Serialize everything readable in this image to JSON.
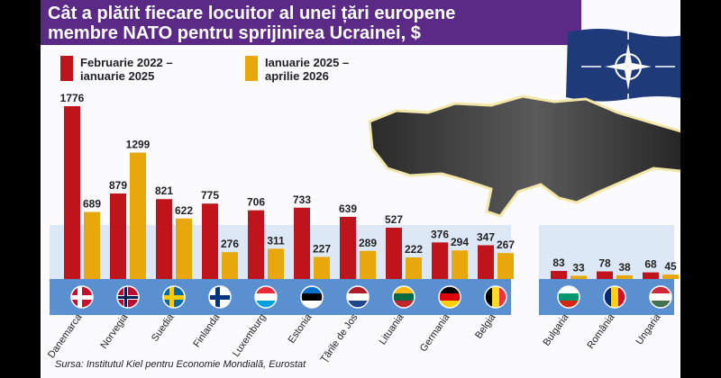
{
  "title": {
    "line1": "Cât a plătit fiecare locuitor al unei țări europene",
    "line2": "membre NATO pentru sprijinirea Ucrainei, $"
  },
  "legend": [
    {
      "label1": "Februarie 2022 –",
      "label2": "ianuarie 2025",
      "color": "#c0141c"
    },
    {
      "label1": "Ianuarie 2025 –",
      "label2": "aprilie 2026",
      "color": "#e8a80c"
    }
  ],
  "source": "Sursa: Institutul Kiel pentru Economie Mondială, Eurostat",
  "colors": {
    "title_bg": "#5b2a86",
    "red": "#c0141c",
    "yellow": "#e8a80c",
    "col_bg": "#dde8f6"
  },
  "icons": {
    "flag": "nato-flag-icon",
    "map": "ukraine-map-icon"
  },
  "chart_data": {
    "type": "bar",
    "categories": [
      "Danemarca",
      "Norvegia",
      "Suedia",
      "Finlanda",
      "Luxemburg",
      "Estonia",
      "Țările de Jos",
      "Lituania",
      "Germania",
      "Belgia",
      "Bulgaria",
      "România",
      "Ungaria"
    ],
    "series": [
      {
        "name": "Februarie 2022 – ianuarie 2025",
        "values": [
          1776,
          879,
          821,
          775,
          706,
          733,
          639,
          527,
          376,
          347,
          83,
          78,
          68
        ]
      },
      {
        "name": "Ianuarie 2025 – aprilie 2026",
        "values": [
          689,
          1299,
          622,
          276,
          311,
          227,
          289,
          222,
          294,
          267,
          33,
          38,
          45
        ]
      }
    ],
    "groups": [
      [
        "Danemarca",
        "Norvegia",
        "Suedia",
        "Finlanda",
        "Luxemburg",
        "Estonia",
        "Țările de Jos",
        "Lituania",
        "Germania",
        "Belgia"
      ],
      [
        "Bulgaria",
        "România",
        "Ungaria"
      ]
    ],
    "title": "Cât a plătit fiecare locuitor al unei țări europene membre NATO pentru sprijinirea Ucrainei, $",
    "ylim": [
      0,
      1776
    ]
  }
}
